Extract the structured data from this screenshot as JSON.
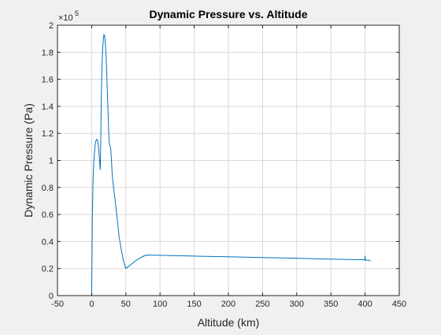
{
  "chart_data": {
    "type": "line",
    "title": "Dynamic Pressure vs. Altitude",
    "xlabel": "Altitude (km)",
    "ylabel": "Dynamic Pressure (Pa)",
    "exponent_base": "×10",
    "exponent_power": "5",
    "xlim": [
      -50,
      450
    ],
    "ylim": [
      0,
      2
    ],
    "xticks": [
      "-50",
      "0",
      "50",
      "100",
      "150",
      "200",
      "250",
      "300",
      "350",
      "400",
      "450"
    ],
    "yticks": [
      "0",
      "0.2",
      "0.4",
      "0.6",
      "0.8",
      "1",
      "1.2",
      "1.4",
      "1.6",
      "1.8",
      "2"
    ],
    "grid": true,
    "legend": "none",
    "series": [
      {
        "color": "#0072BD",
        "x": [
          0,
          0.2,
          1,
          2,
          3,
          4,
          5,
          6,
          7,
          8,
          9,
          10,
          11,
          12,
          12.6,
          13,
          13.6,
          14,
          15,
          16,
          17,
          18,
          19,
          20,
          21,
          22,
          23,
          24,
          25,
          26,
          27,
          28,
          29,
          30,
          32,
          34,
          36,
          38,
          40,
          42,
          44,
          46,
          48,
          50,
          55,
          60,
          65,
          70,
          75,
          80,
          100,
          150,
          200,
          250,
          300,
          350,
          395,
          399.5,
          400,
          400.4,
          401,
          405,
          408
        ],
        "y": [
          0,
          0.1,
          0.58,
          0.85,
          0.98,
          1.05,
          1.11,
          1.14,
          1.155,
          1.155,
          1.14,
          1.1,
          1.04,
          0.96,
          0.93,
          1.05,
          1.25,
          1.45,
          1.68,
          1.82,
          1.89,
          1.93,
          1.92,
          1.87,
          1.78,
          1.65,
          1.5,
          1.35,
          1.2,
          1.12,
          1.11,
          1.08,
          1.0,
          0.9,
          0.8,
          0.72,
          0.63,
          0.54,
          0.44,
          0.38,
          0.32,
          0.27,
          0.23,
          0.2,
          0.22,
          0.24,
          0.26,
          0.275,
          0.29,
          0.3,
          0.298,
          0.292,
          0.287,
          0.281,
          0.276,
          0.27,
          0.265,
          0.264,
          0.295,
          0.263,
          0.262,
          0.262,
          0.258
        ]
      }
    ]
  }
}
